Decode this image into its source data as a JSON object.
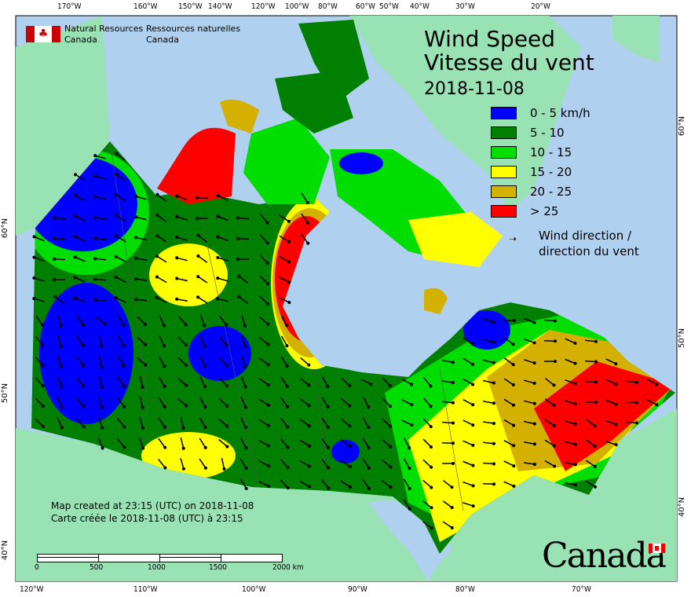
{
  "header": {
    "org_en_line1": "Natural Resources",
    "org_en_line2": "Canada",
    "org_fr_line1": "Ressources naturelles",
    "org_fr_line2": "Canada"
  },
  "title": {
    "en": "Wind Speed",
    "fr": "Vitesse du vent",
    "date": "2018-11-08"
  },
  "legend": {
    "items": [
      {
        "label": "0 - 5 km/h",
        "color": "#0000ff"
      },
      {
        "label": "5 - 10",
        "color": "#007f00"
      },
      {
        "label": "10 - 15",
        "color": "#00dd00"
      },
      {
        "label": "15 - 20",
        "color": "#ffff00"
      },
      {
        "label": "20 - 25",
        "color": "#d4b000"
      },
      {
        "label": "> 25",
        "color": "#ff0000"
      }
    ],
    "wind_line1": "Wind direction /",
    "wind_line2": "direction du vent"
  },
  "credits": {
    "en": "Map created at 23:15 (UTC) on 2018-11-08",
    "fr": "Carte créée le 2018-11-08 (UTC) à 23:15"
  },
  "scale_bar": {
    "labels": [
      "0",
      "500",
      "1000",
      "1500",
      "2000 km"
    ]
  },
  "wordmark": "Canada",
  "axes": {
    "top": [
      "170°W",
      "160°W",
      "150°W",
      "140°W",
      "120°W",
      "100°W",
      "80°W",
      "60°W",
      "50°W",
      "40°W",
      "30°W",
      "20°W"
    ],
    "bottom": [
      "120°W",
      "110°W",
      "100°W",
      "90°W",
      "80°W",
      "70°W"
    ],
    "left": [
      "60°N",
      "50°N",
      "40°N"
    ],
    "right": [
      "60°N",
      "50°N",
      "40°N"
    ]
  },
  "colors": {
    "water": "#b0d0f0",
    "land": "#98e2b4"
  }
}
